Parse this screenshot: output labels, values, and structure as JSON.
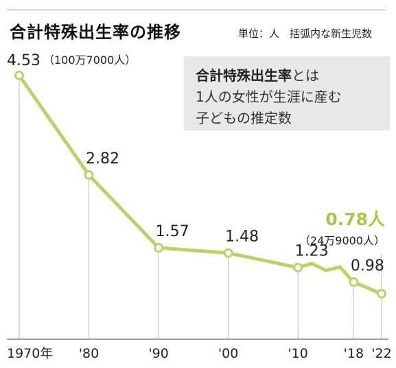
{
  "title": "合計特殊出生率の推移",
  "unit_note": "単位：人　括弧内な新生児数",
  "definition": {
    "bold": "合計特殊出生率",
    "rest1": "とは",
    "line2": "1人の女性が生涯に産む",
    "line3": "子どもの推定数"
  },
  "colors": {
    "line": "#b8d36a",
    "highlight": "#a9c54a",
    "marker_fill": "#ffffff",
    "guide": "#bbbbbb"
  },
  "chart_data": {
    "type": "line",
    "title": "合計特殊出生率の推移",
    "xlabel": "",
    "ylabel": "",
    "xlim": [
      1970,
      2022
    ],
    "ylim": [
      0,
      5
    ],
    "grid": false,
    "series": [
      {
        "x": [
          1970,
          1980,
          1990,
          2000,
          2010,
          2012,
          2014,
          2016,
          2018,
          2022
        ],
        "values": [
          4.53,
          2.82,
          1.57,
          1.48,
          1.23,
          1.3,
          1.18,
          1.24,
          0.98,
          0.78
        ]
      }
    ],
    "markers": [
      {
        "x": 1970,
        "y": 4.53,
        "label": "4.53",
        "sublabel": "（100万7000人）"
      },
      {
        "x": 1980,
        "y": 2.82,
        "label": "2.82"
      },
      {
        "x": 1990,
        "y": 1.57,
        "label": "1.57"
      },
      {
        "x": 2000,
        "y": 1.48,
        "label": "1.48"
      },
      {
        "x": 2010,
        "y": 1.23,
        "label": "1.23"
      },
      {
        "x": 2018,
        "y": 0.98,
        "label": "0.98"
      },
      {
        "x": 2022,
        "y": 0.78,
        "label": "0.78人",
        "sublabel": "（24万9000人）"
      }
    ],
    "x_ticks": [
      {
        "x": 1970,
        "label": "1970年"
      },
      {
        "x": 1980,
        "label": "'80"
      },
      {
        "x": 1990,
        "label": "'90"
      },
      {
        "x": 2000,
        "label": "'00"
      },
      {
        "x": 2010,
        "label": "'10"
      },
      {
        "x": 2018,
        "label": "'18"
      },
      {
        "x": 2022,
        "label": "'22"
      }
    ]
  }
}
